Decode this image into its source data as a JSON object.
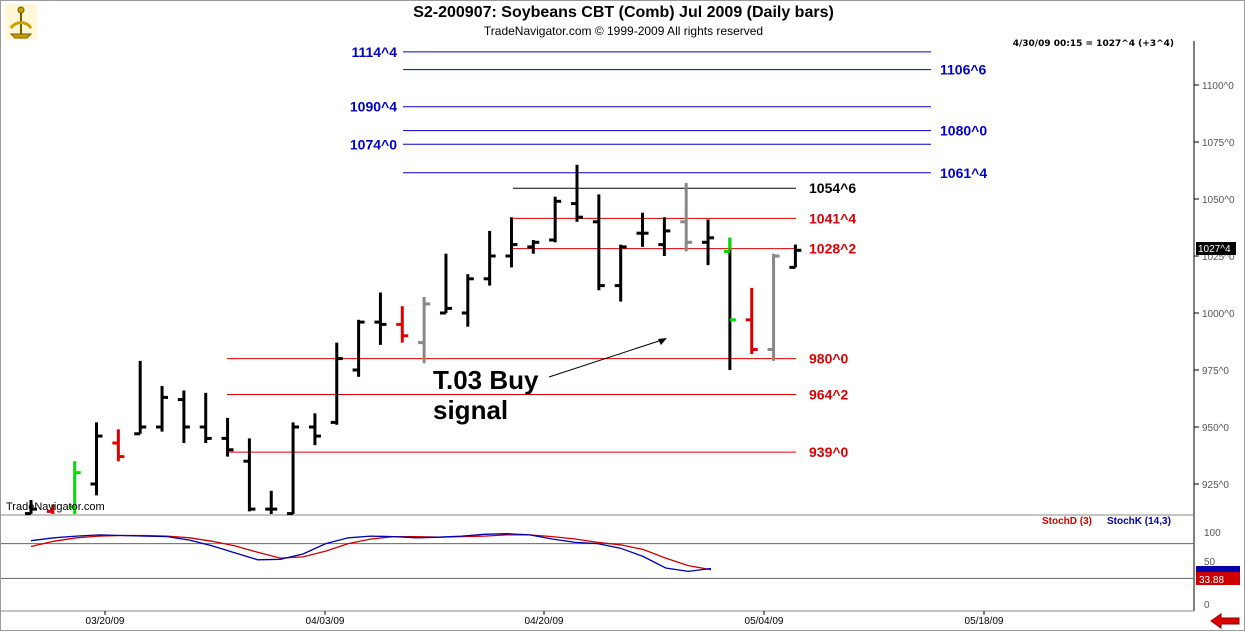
{
  "header": {
    "title": "S2-200907:  Soybeans CBT (Comb) Jul 2009  (Daily bars)",
    "subtitle": "TradeNavigator.com © 1999-2009 All rights reserved",
    "info": "4/30/09 00:15 = 1027^4 (+3^4)",
    "watermark": "TradeNavigator.com",
    "logo_icon": "sextant-icon"
  },
  "annotation": {
    "line1": "T.03 Buy",
    "line2": "signal"
  },
  "indicator": {
    "stochd_label": "StochD (3)",
    "stochk_label": "StochK (14,3)",
    "stochd_color": "#cc0000",
    "stochk_color": "#0000aa",
    "k_value": "33.88",
    "ticks": [
      "100",
      "50",
      "0"
    ],
    "levels": [
      80,
      20
    ]
  },
  "price_tag": "1027^4",
  "colors": {
    "up": "#000000",
    "down": "#dd0000",
    "signal_green": "#00dd00",
    "gray": "#888888",
    "level_blue": "#0000cc",
    "level_red": "#dd0000",
    "level_black": "#000000"
  },
  "chart_data": {
    "type": "bar",
    "ylim": [
      910,
      1125
    ],
    "yticks": [
      "925^0",
      "950^0",
      "975^0",
      "1000^0",
      "1025^0",
      "1050^0",
      "1075^0",
      "1100^0"
    ],
    "xticks": [
      "03/20/09",
      "04/03/09",
      "04/20/09",
      "05/04/09",
      "05/18/09"
    ],
    "levels": [
      {
        "label": "1114^4",
        "value": 1114.5,
        "color": "blue",
        "label_side": "left"
      },
      {
        "label": "1106^6",
        "value": 1106.75,
        "color": "blue",
        "label_side": "right"
      },
      {
        "label": "1090^4",
        "value": 1090.5,
        "color": "blue",
        "label_side": "left"
      },
      {
        "label": "1080^0",
        "value": 1080,
        "color": "blue",
        "label_side": "right"
      },
      {
        "label": "1074^0",
        "value": 1074,
        "color": "blue",
        "label_side": "left"
      },
      {
        "label": "1061^4",
        "value": 1061.5,
        "color": "blue",
        "label_side": "right"
      },
      {
        "label": "1054^6",
        "value": 1054.75,
        "color": "black",
        "label_side": "right"
      },
      {
        "label": "1041^4",
        "value": 1041.5,
        "color": "red",
        "label_side": "right"
      },
      {
        "label": "1028^2",
        "value": 1028.25,
        "color": "red",
        "label_side": "right"
      },
      {
        "label": "980^0",
        "value": 980,
        "color": "red",
        "label_side": "right"
      },
      {
        "label": "964^2",
        "value": 964.25,
        "color": "red",
        "label_side": "right"
      },
      {
        "label": "939^0",
        "value": 939,
        "color": "red",
        "label_side": "right"
      }
    ],
    "bars": [
      {
        "date": "03/16/09",
        "o": 912,
        "h": 918,
        "l": 908,
        "c": 914,
        "color": "black"
      },
      {
        "date": "03/17/09",
        "o": 913,
        "h": 916,
        "l": 907,
        "c": 910,
        "color": "red"
      },
      {
        "date": "03/18/09",
        "o": 915,
        "h": 935,
        "l": 905,
        "c": 930,
        "color": "green"
      },
      {
        "date": "03/19/09",
        "o": 925,
        "h": 952,
        "l": 920,
        "c": 946,
        "color": "black"
      },
      {
        "date": "03/20/09",
        "o": 943,
        "h": 949,
        "l": 935,
        "c": 937,
        "color": "red"
      },
      {
        "date": "03/23/09",
        "o": 947,
        "h": 979,
        "l": 947,
        "c": 950,
        "color": "black"
      },
      {
        "date": "03/24/09",
        "o": 950,
        "h": 968,
        "l": 948,
        "c": 963,
        "color": "black"
      },
      {
        "date": "03/25/09",
        "o": 962,
        "h": 966,
        "l": 943,
        "c": 950,
        "color": "black"
      },
      {
        "date": "03/26/09",
        "o": 950,
        "h": 965,
        "l": 943,
        "c": 945,
        "color": "black"
      },
      {
        "date": "03/27/09",
        "o": 945,
        "h": 954,
        "l": 937,
        "c": 940,
        "color": "black"
      },
      {
        "date": "03/30/09",
        "o": 935,
        "h": 945,
        "l": 913,
        "c": 914,
        "color": "black"
      },
      {
        "date": "03/31/09",
        "o": 914,
        "h": 922,
        "l": 910,
        "c": 914,
        "color": "black"
      },
      {
        "date": "04/01/09",
        "o": 912,
        "h": 952,
        "l": 910,
        "c": 950,
        "color": "black"
      },
      {
        "date": "04/02/09",
        "o": 950,
        "h": 956,
        "l": 942,
        "c": 946,
        "color": "black"
      },
      {
        "date": "04/03/09",
        "o": 952,
        "h": 987,
        "l": 951,
        "c": 980,
        "color": "black"
      },
      {
        "date": "04/06/09",
        "o": 975,
        "h": 997,
        "l": 972,
        "c": 996,
        "color": "black"
      },
      {
        "date": "04/07/09",
        "o": 996,
        "h": 1009,
        "l": 986,
        "c": 995,
        "color": "black"
      },
      {
        "date": "04/08/09",
        "o": 995,
        "h": 1003,
        "l": 987,
        "c": 990,
        "color": "red"
      },
      {
        "date": "04/09/09",
        "o": 987,
        "h": 1007,
        "l": 978,
        "c": 1004,
        "color": "gray"
      },
      {
        "date": "04/13/09",
        "o": 1000,
        "h": 1026,
        "l": 1000,
        "c": 1002,
        "color": "black"
      },
      {
        "date": "04/14/09",
        "o": 1000,
        "h": 1017,
        "l": 994,
        "c": 1015,
        "color": "black"
      },
      {
        "date": "04/15/09",
        "o": 1015,
        "h": 1036,
        "l": 1012,
        "c": 1025,
        "color": "black"
      },
      {
        "date": "04/16/09",
        "o": 1025,
        "h": 1042,
        "l": 1020,
        "c": 1030,
        "color": "black"
      },
      {
        "date": "04/17/09",
        "o": 1029,
        "h": 1032,
        "l": 1026,
        "c": 1031,
        "color": "black"
      },
      {
        "date": "04/20/09",
        "o": 1032,
        "h": 1051,
        "l": 1031,
        "c": 1049,
        "color": "black"
      },
      {
        "date": "04/21/09",
        "o": 1048,
        "h": 1065,
        "l": 1040,
        "c": 1042,
        "color": "black"
      },
      {
        "date": "04/22/09",
        "o": 1040,
        "h": 1052,
        "l": 1010,
        "c": 1012,
        "color": "black"
      },
      {
        "date": "04/23/09",
        "o": 1012,
        "h": 1030,
        "l": 1005,
        "c": 1029,
        "color": "black"
      },
      {
        "date": "04/24/09",
        "o": 1035,
        "h": 1044,
        "l": 1029,
        "c": 1035,
        "color": "black"
      },
      {
        "date": "04/27/09",
        "o": 1030,
        "h": 1042,
        "l": 1025,
        "c": 1036,
        "color": "black"
      },
      {
        "date": "04/28/09",
        "o": 1040,
        "h": 1057,
        "l": 1027,
        "c": 1031,
        "color": "gray"
      },
      {
        "date": "04/29/09",
        "o": 1031,
        "h": 1041,
        "l": 1021,
        "c": 1033,
        "color": "black"
      },
      {
        "date": "04/30/09",
        "o": 1027,
        "h": 1033,
        "l": 975,
        "c": 997,
        "color": "green"
      },
      {
        "date": "05/01/09",
        "o": 997,
        "h": 1011,
        "l": 982,
        "c": 984,
        "color": "red"
      },
      {
        "date": "05/04/09",
        "o": 984,
        "h": 1026,
        "l": 979,
        "c": 1025,
        "color": "gray"
      },
      {
        "date": "05/05/09",
        "o": 1020,
        "h": 1030,
        "l": 1020,
        "c": 1027.5,
        "color": "black"
      }
    ],
    "stoch_k": [
      85,
      90,
      93,
      95,
      94,
      93,
      92,
      86,
      76,
      64,
      52,
      53,
      62,
      80,
      90,
      93,
      92,
      90,
      91,
      93,
      96,
      97,
      95,
      88,
      82,
      80,
      72,
      58,
      38,
      32,
      37
    ],
    "stoch_d": [
      75,
      84,
      90,
      93,
      94,
      94,
      93,
      90,
      84,
      76,
      65,
      55,
      57,
      67,
      80,
      88,
      92,
      92,
      91,
      92,
      93,
      95,
      95,
      92,
      88,
      82,
      78,
      70,
      55,
      42,
      35
    ]
  }
}
